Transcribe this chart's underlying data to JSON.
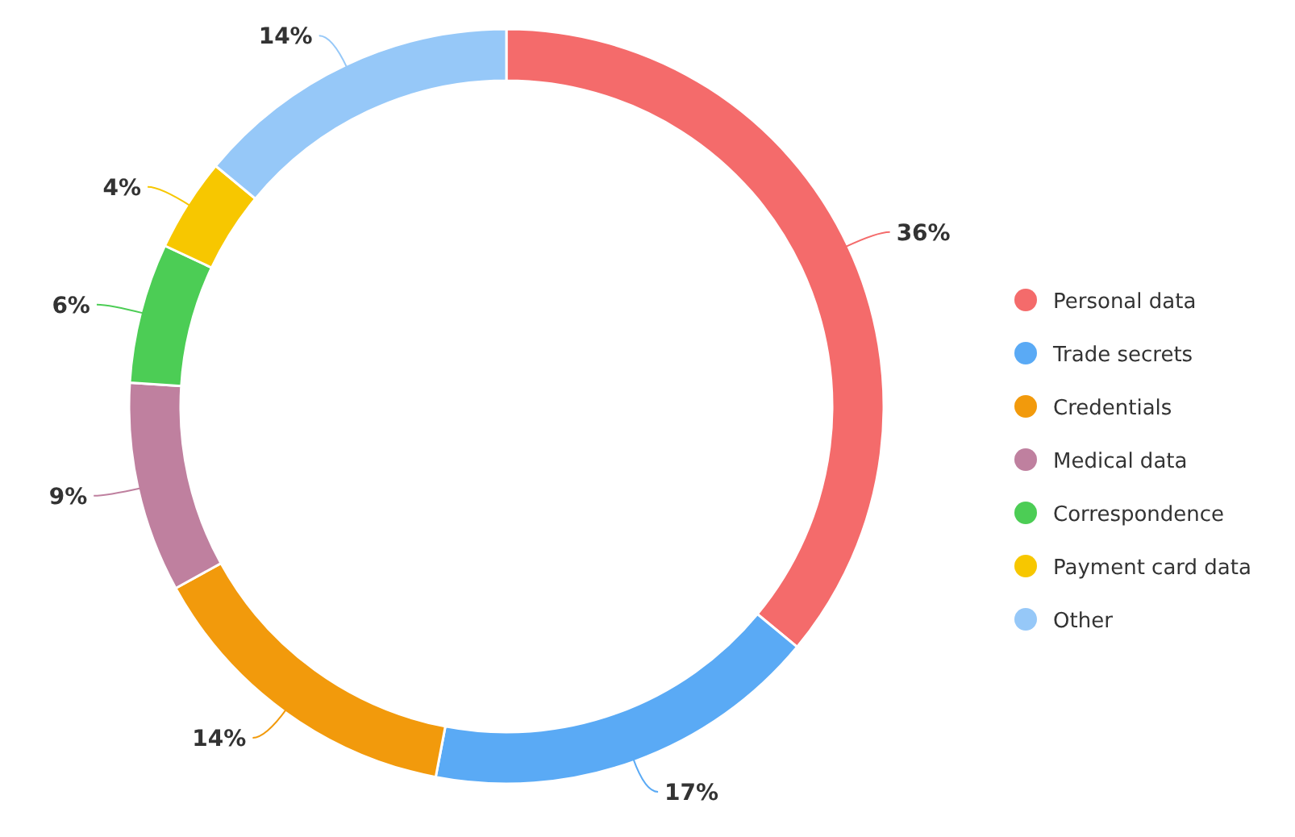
{
  "chart_data": {
    "type": "donut",
    "categories": [
      "Personal data",
      "Trade secrets",
      "Credentials",
      "Medical data",
      "Correspondence",
      "Payment card data",
      "Other"
    ],
    "values": [
      36,
      17,
      14,
      9,
      6,
      4,
      14
    ],
    "colors": [
      "#f46b6b",
      "#5aaaf5",
      "#f29a0c",
      "#bf809f",
      "#4ccd55",
      "#f7c700",
      "#96c8f8"
    ],
    "legend": "right",
    "value_labels": [
      "36%",
      "17%",
      "14%",
      "9%",
      "6%",
      "4%",
      "14%"
    ]
  }
}
